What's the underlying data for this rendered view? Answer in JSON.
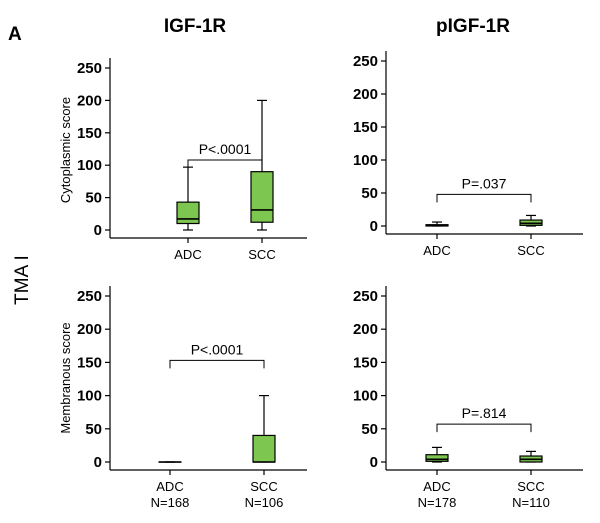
{
  "panel_label": "A",
  "side_label": "TMA I",
  "column_titles": [
    "IGF-1R",
    "pIGF-1R"
  ],
  "row_labels": [
    "Cytoplasmic score",
    "Membranous score"
  ],
  "colors": {
    "box_fill": "#7dc650",
    "stroke": "#000000"
  },
  "chart_data": [
    {
      "type": "box",
      "panel": "top-left",
      "title": "IGF-1R",
      "ylabel": "Cytoplasmic score",
      "ylim": [
        0,
        250
      ],
      "yticks": [
        0,
        50,
        100,
        150,
        200,
        250
      ],
      "grid": false,
      "categories": [
        "ADC",
        "SCC"
      ],
      "boxes": [
        {
          "category": "ADC",
          "min": 0,
          "q1": 10,
          "median": 17,
          "q3": 43,
          "max": 97
        },
        {
          "category": "SCC",
          "min": 0,
          "q1": 12,
          "median": 31,
          "q3": 90,
          "max": 200
        }
      ],
      "annotation": "P<.0001",
      "annotation_bracket_y": 108
    },
    {
      "type": "box",
      "panel": "top-right",
      "title": "pIGF-1R",
      "ylabel": "",
      "ylim": [
        0,
        250
      ],
      "yticks": [
        0,
        50,
        100,
        150,
        200,
        250
      ],
      "grid": false,
      "categories": [
        "ADC",
        "SCC"
      ],
      "boxes": [
        {
          "category": "ADC",
          "min": 0,
          "q1": 0,
          "median": 1,
          "q3": 2,
          "max": 6
        },
        {
          "category": "SCC",
          "min": 0,
          "q1": 1,
          "median": 4,
          "q3": 9,
          "max": 16
        }
      ],
      "annotation": "P=.037",
      "annotation_bracket_y": 48
    },
    {
      "type": "box",
      "panel": "bottom-left",
      "title": "",
      "ylabel": "Membranous score",
      "ylim": [
        0,
        250
      ],
      "yticks": [
        0,
        50,
        100,
        150,
        200,
        250
      ],
      "grid": false,
      "categories": [
        "ADC\nN=168",
        "SCC\nN=106"
      ],
      "boxes": [
        {
          "category": "ADC",
          "min": 0,
          "q1": 0,
          "median": 0,
          "q3": 0,
          "max": 0
        },
        {
          "category": "SCC",
          "min": 0,
          "q1": 0,
          "median": 0,
          "q3": 40,
          "max": 100
        }
      ],
      "annotation": "P<.0001",
      "annotation_bracket_y": 153
    },
    {
      "type": "box",
      "panel": "bottom-right",
      "title": "",
      "ylabel": "",
      "ylim": [
        0,
        250
      ],
      "yticks": [
        0,
        50,
        100,
        150,
        200,
        250
      ],
      "grid": false,
      "categories": [
        "ADC\nN=178",
        "SCC\nN=110"
      ],
      "boxes": [
        {
          "category": "ADC",
          "min": 0,
          "q1": 1,
          "median": 4,
          "q3": 11,
          "max": 22
        },
        {
          "category": "SCC",
          "min": 0,
          "q1": 0,
          "median": 4,
          "q3": 9,
          "max": 16
        }
      ],
      "annotation": "P=.814",
      "annotation_bracket_y": 57
    }
  ]
}
